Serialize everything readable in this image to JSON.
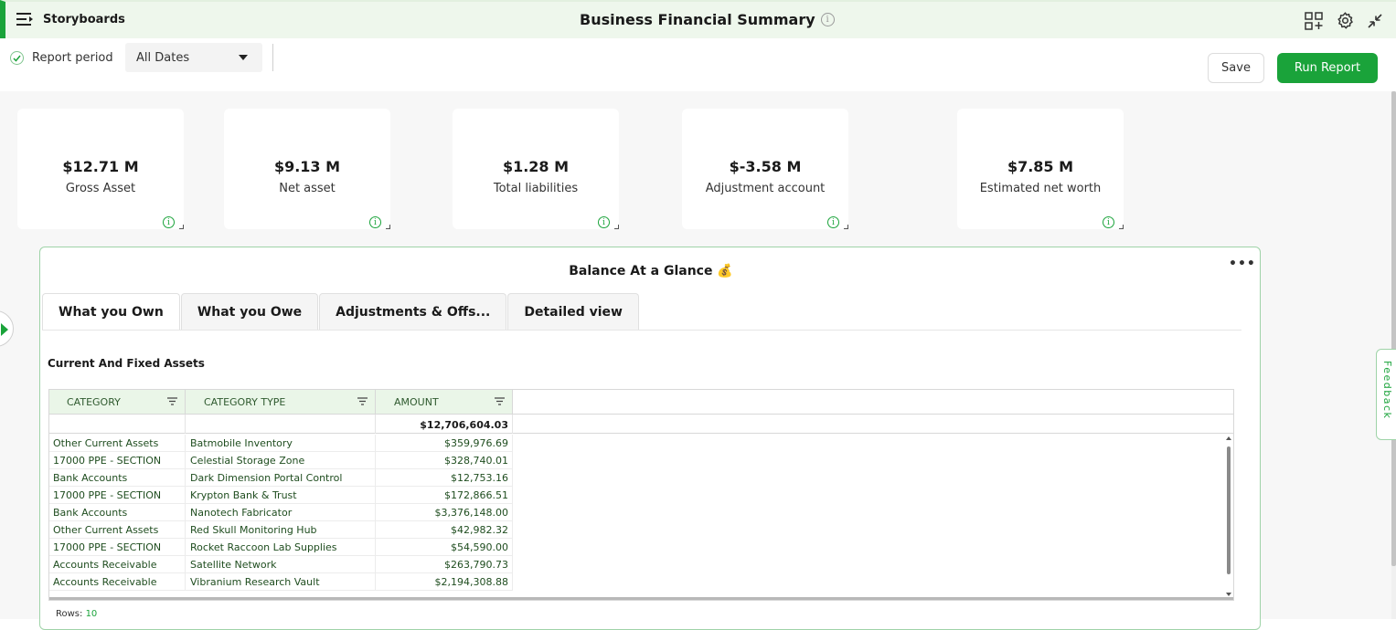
{
  "app": {
    "name": "Storyboards",
    "menu_icon": "menu-icon"
  },
  "header": {
    "title": "Business Financial Summary",
    "info_glyph": "i",
    "icons": [
      "add-widget-icon",
      "gear-icon",
      "collapse-icon"
    ]
  },
  "filter": {
    "label": "Report period",
    "checked": true,
    "period_value": "All Dates"
  },
  "actions": {
    "save_label": "Save",
    "run_label": "Run Report"
  },
  "kpis": [
    {
      "value": "$12.71 M",
      "label": "Gross Asset"
    },
    {
      "value": "$9.13 M",
      "label": "Net asset"
    },
    {
      "value": "$1.28 M",
      "label": "Total liabilities"
    },
    {
      "value": "$-3.58 M",
      "label": "Adjustment account"
    },
    {
      "value": "$7.85 M",
      "label": "Estimated net worth"
    }
  ],
  "panel": {
    "title": "Balance At a Glance 💰",
    "more_label": "•••",
    "tabs": [
      "What you Own",
      "What you Owe",
      "Adjustments & Offs...",
      "Detailed view"
    ],
    "active_tab": 0,
    "section_title": "Current And Fixed Assets",
    "table": {
      "columns": [
        "CATEGORY",
        "CATEGORY TYPE",
        "AMOUNT"
      ],
      "total": "$12,706,604.03",
      "rows": [
        [
          "Other Current Assets",
          "Batmobile Inventory",
          "$359,976.69"
        ],
        [
          "17000 PPE - SECTION",
          "Celestial Storage Zone",
          "$328,740.01"
        ],
        [
          "Bank Accounts",
          "Dark Dimension Portal Control",
          "$12,753.16"
        ],
        [
          "17000 PPE - SECTION",
          "Krypton Bank & Trust",
          "$172,866.51"
        ],
        [
          "Bank Accounts",
          "Nanotech Fabricator",
          "$3,376,148.00"
        ],
        [
          "Other Current Assets",
          "Red Skull Monitoring Hub",
          "$42,982.32"
        ],
        [
          "17000 PPE - SECTION",
          "Rocket Raccoon Lab Supplies",
          "$54,590.00"
        ],
        [
          "Accounts Receivable",
          "Satellite Network",
          "$263,790.73"
        ],
        [
          "Accounts Receivable",
          "Vibranium Research Vault",
          "$2,194,308.88"
        ]
      ]
    },
    "rows_label": "Rows:",
    "rows_count": "10"
  },
  "feedback_label": "Feedback",
  "colors": {
    "accent": "#1aa33a",
    "header_bg": "#eef7ec",
    "grid_header_bg": "#eaf6e8",
    "panel_border": "#9fd3a8"
  }
}
